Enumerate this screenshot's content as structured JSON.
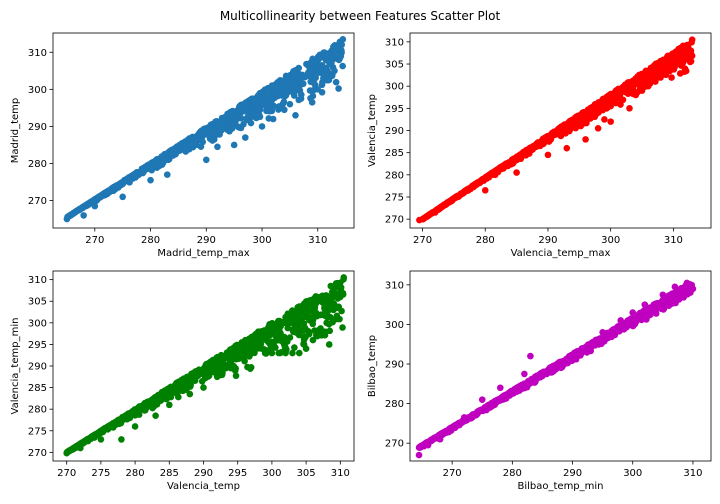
{
  "title": "Multicollinearity between Features Scatter Plot",
  "chart_data": [
    {
      "type": "scatter",
      "color": "#1f77b4",
      "xlabel": "Madrid_temp_max",
      "ylabel": "Madrid_temp",
      "xlim": [
        262.5,
        316.5
      ],
      "ylim": [
        262.6,
        315.2
      ],
      "xticks": [
        270,
        280,
        290,
        300,
        310
      ],
      "yticks": [
        270,
        280,
        290,
        300,
        310
      ],
      "band": {
        "x_start": 265,
        "x_end": 314.5,
        "y_upper_start": 265.5,
        "y_upper_end": 313.5,
        "y_lower_start": 265,
        "y_lower_end": 298,
        "density": 0.7
      },
      "points": [
        [
          265.0,
          265.0
        ],
        [
          268,
          266
        ],
        [
          270,
          268.5
        ],
        [
          275,
          271
        ],
        [
          280,
          275.5
        ],
        [
          283,
          277
        ],
        [
          290,
          281
        ],
        [
          292,
          284.5
        ],
        [
          295,
          285
        ],
        [
          297,
          287
        ],
        [
          300,
          290
        ],
        [
          302,
          292
        ],
        [
          304,
          294.5
        ],
        [
          305,
          296
        ],
        [
          306,
          293
        ],
        [
          307,
          297.5
        ],
        [
          309,
          296.5
        ],
        [
          310,
          300
        ],
        [
          311,
          303
        ],
        [
          312,
          302.5
        ],
        [
          313,
          305
        ],
        [
          314.5,
          313.5
        ]
      ]
    },
    {
      "type": "scatter",
      "color": "#ff0000",
      "xlabel": "Valencia_temp_max",
      "ylabel": "Valencia_temp",
      "xlim": [
        268.0,
        316.0
      ],
      "ylim": [
        268.0,
        312.0
      ],
      "xticks": [
        270,
        280,
        290,
        300,
        310
      ],
      "yticks": [
        270,
        275,
        280,
        285,
        290,
        295,
        300,
        305,
        310
      ],
      "band": {
        "x_start": 270,
        "x_end": 313,
        "y_upper_start": 270,
        "y_upper_end": 310.5,
        "y_lower_start": 269.5,
        "y_lower_end": 303,
        "density": 0.75
      },
      "points": [
        [
          269.5,
          269.8
        ],
        [
          272,
          271.5
        ],
        [
          280,
          276.5
        ],
        [
          285,
          280.5
        ],
        [
          290,
          284.5
        ],
        [
          293,
          286
        ],
        [
          296,
          288
        ],
        [
          298,
          290.5
        ],
        [
          299,
          292.5
        ],
        [
          300,
          295.5
        ],
        [
          303,
          295
        ],
        [
          304,
          298
        ],
        [
          305,
          299
        ],
        [
          306,
          300
        ],
        [
          307,
          301.5
        ],
        [
          309,
          304
        ],
        [
          310,
          305.5
        ],
        [
          311,
          305.5
        ],
        [
          312,
          306.5
        ],
        [
          313,
          310.5
        ],
        [
          300,
          292
        ]
      ]
    },
    {
      "type": "scatter",
      "color": "#008000",
      "xlabel": "Valencia_temp",
      "ylabel": "Valencia_temp_min",
      "xlim": [
        268.0,
        312.0
      ],
      "ylim": [
        268.0,
        312.0
      ],
      "xticks": [
        270,
        275,
        280,
        285,
        290,
        295,
        300,
        305,
        310
      ],
      "yticks": [
        270,
        275,
        280,
        285,
        290,
        295,
        300,
        305,
        310
      ],
      "band": {
        "x_start": 270,
        "x_end": 310.5,
        "y_upper_start": 270,
        "y_upper_end": 310.5,
        "y_lower_start": 269.5,
        "y_lower_end": 293,
        "density": 0.75
      },
      "points": [
        [
          270,
          269.8
        ],
        [
          272,
          271
        ],
        [
          275,
          273
        ],
        [
          278,
          273
        ],
        [
          280,
          276
        ],
        [
          283,
          278.5
        ],
        [
          285,
          281
        ],
        [
          288,
          283.5
        ],
        [
          290,
          285
        ],
        [
          292,
          287.5
        ],
        [
          294,
          289.5
        ],
        [
          295,
          292.8
        ],
        [
          297,
          293
        ],
        [
          299,
          293
        ],
        [
          300,
          293
        ],
        [
          301,
          293
        ],
        [
          302,
          293
        ],
        [
          303,
          293
        ],
        [
          304,
          293
        ],
        [
          305,
          294
        ],
        [
          306,
          296
        ],
        [
          307,
          298
        ],
        [
          308,
          300
        ],
        [
          309,
          303
        ],
        [
          310,
          306
        ],
        [
          310.5,
          310.5
        ]
      ]
    },
    {
      "type": "scatter",
      "color": "#bf00bf",
      "xlabel": "Bilbao_temp_min",
      "ylabel": "Bilbao_temp",
      "xlim": [
        263.0,
        313.0
      ],
      "ylim": [
        265.5,
        313.5
      ],
      "xticks": [
        270,
        280,
        290,
        300,
        310
      ],
      "yticks": [
        270,
        280,
        290,
        300,
        310
      ],
      "band": {
        "x_start": 264.5,
        "x_end": 310,
        "y_upper_start": 269,
        "y_upper_end": 311,
        "y_lower_start": 266.5,
        "y_lower_end": 307,
        "density": 0.8
      },
      "points": [
        [
          264.5,
          267
        ],
        [
          266,
          269.5
        ],
        [
          268,
          271
        ],
        [
          270,
          274
        ],
        [
          272,
          276.5
        ],
        [
          275,
          281
        ],
        [
          278,
          284
        ],
        [
          282,
          287.5
        ],
        [
          283,
          292
        ],
        [
          285,
          287
        ],
        [
          288,
          290.5
        ],
        [
          292,
          294
        ],
        [
          295,
          298
        ],
        [
          298,
          301
        ],
        [
          300,
          303
        ],
        [
          302,
          305
        ],
        [
          305,
          307.5
        ],
        [
          307,
          309.5
        ],
        [
          309,
          310.5
        ],
        [
          310,
          309
        ]
      ]
    }
  ]
}
